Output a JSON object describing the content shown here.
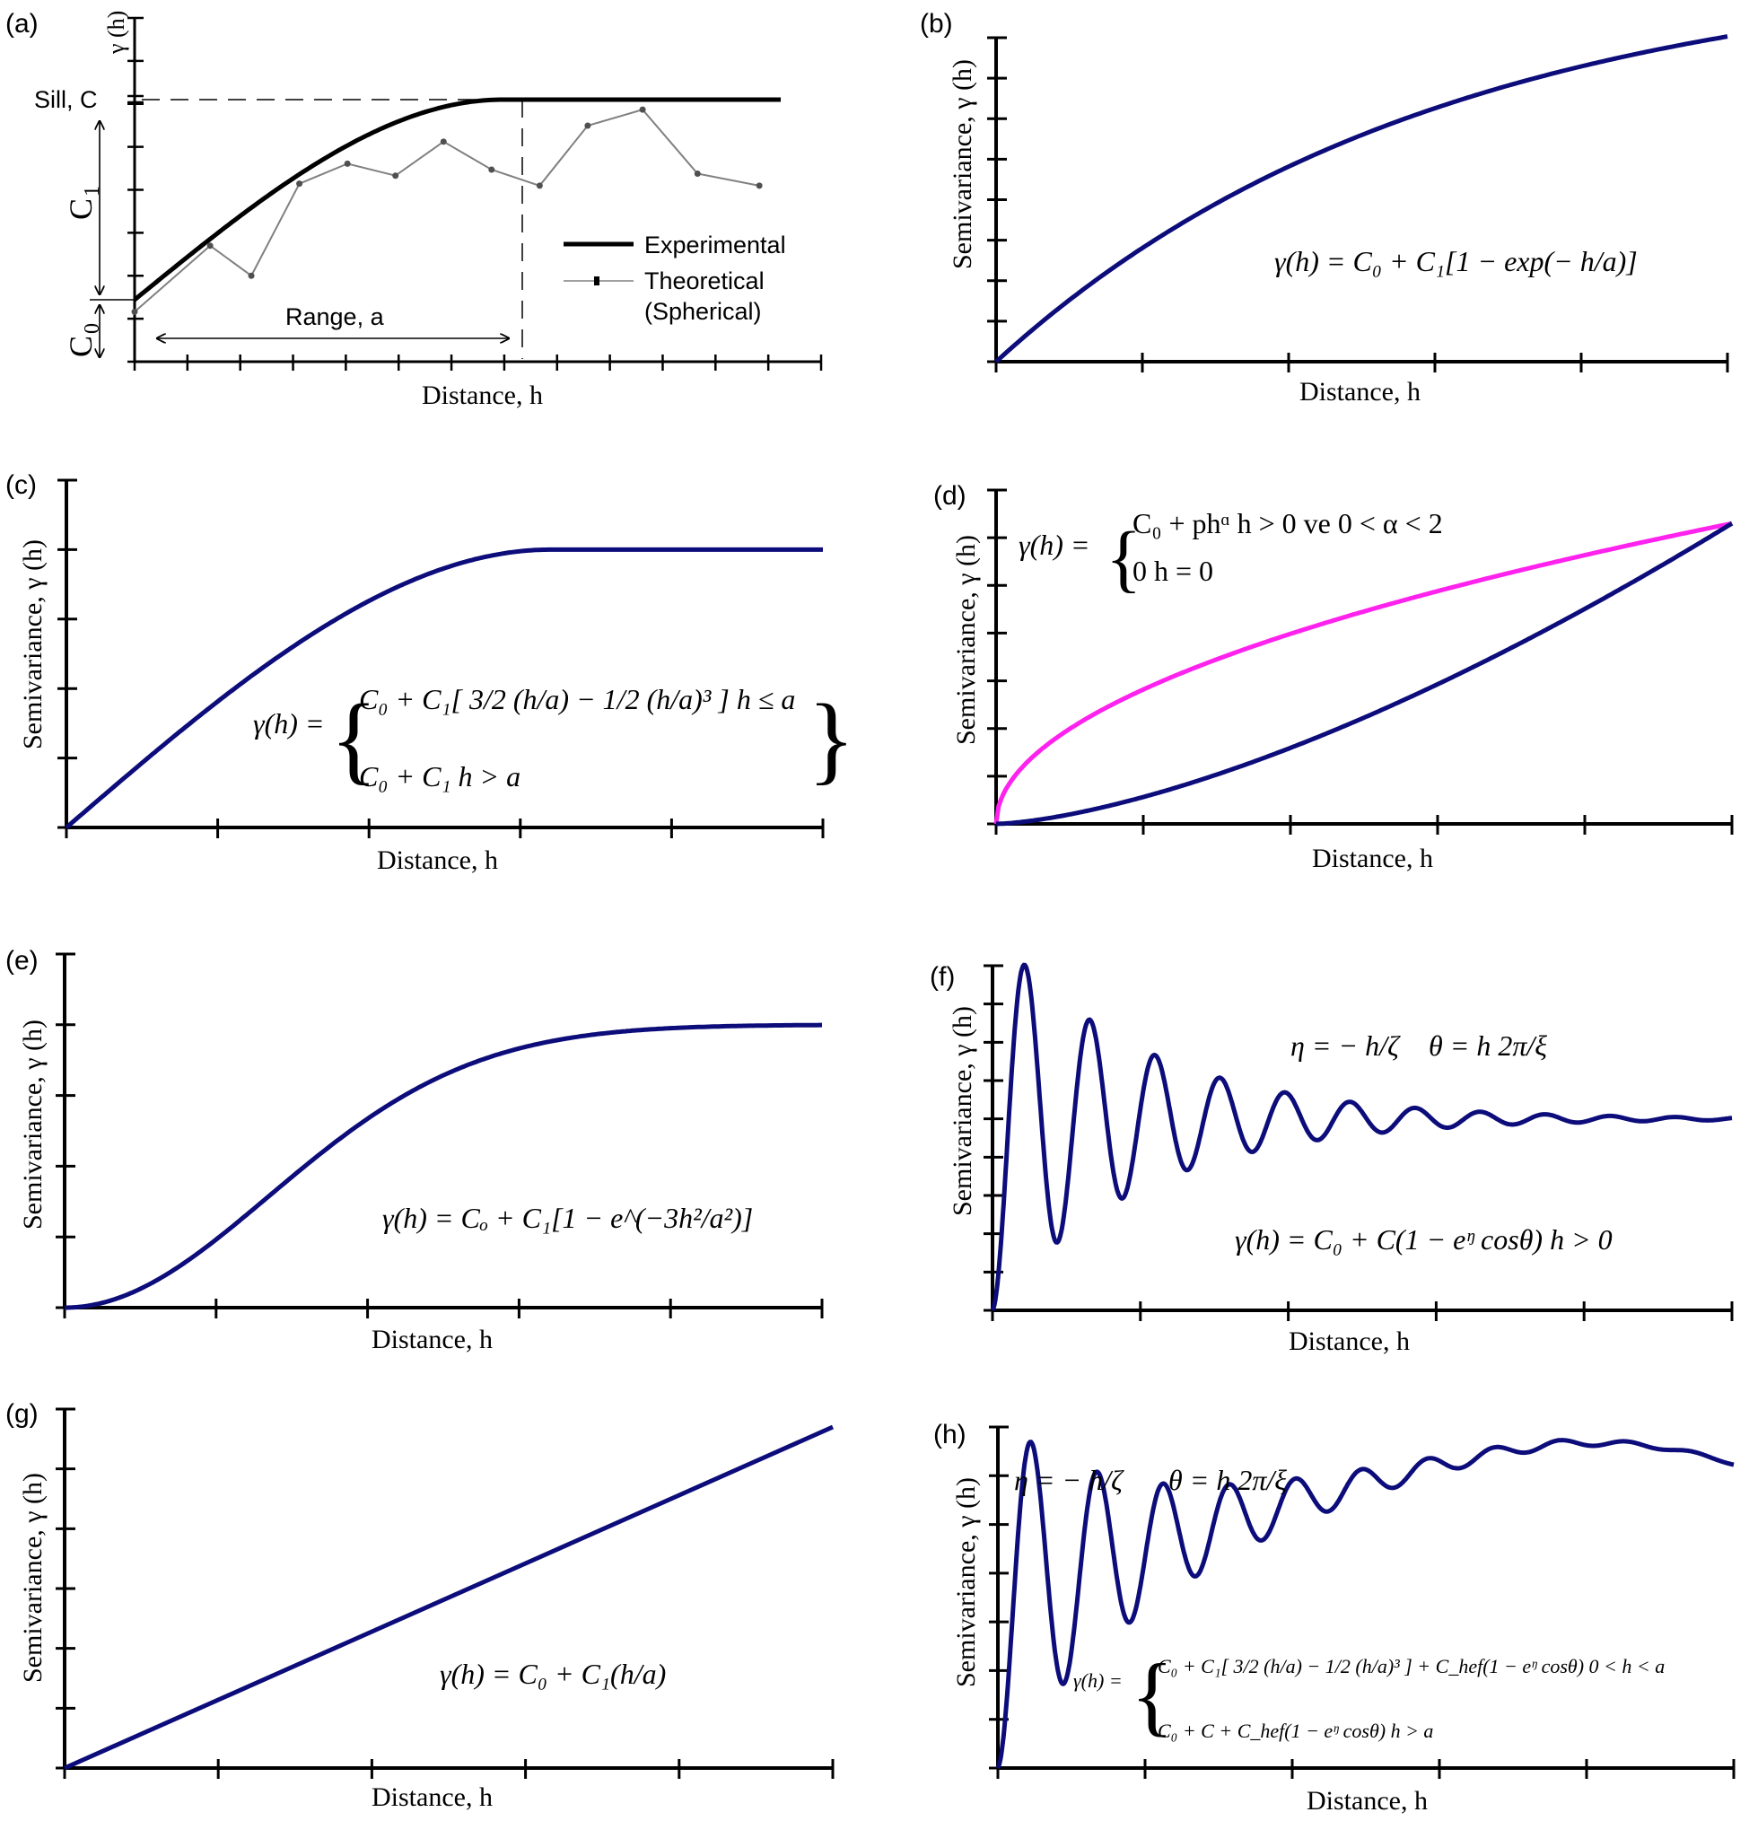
{
  "figure": {
    "colors": {
      "curve": "#0c0c7a",
      "power_alt": "#ff22ee",
      "axis": "#000000",
      "theoretical": "#808080"
    }
  },
  "chart_data": [
    {
      "id": "a",
      "type": "line",
      "panel_label": "(a)",
      "xlabel": "Distance, h",
      "ylabel": "γ (h)",
      "annotations": {
        "sill": "Sill, C",
        "c1": "C",
        "c1_sub": "1",
        "c0": "C",
        "c0_sub": "0",
        "range": "Range, a"
      },
      "legend": {
        "position": "right",
        "entries": [
          "Experimental",
          "Theoretical",
          "(Spherical)"
        ]
      },
      "x_ticks": 13,
      "y_ticks": 8,
      "nugget": 0.0,
      "sill": 1.0,
      "range_fraction": 0.565,
      "series": [
        {
          "name": "Experimental",
          "model": "spherical",
          "c0_ratio": 0.0,
          "x": [
            0,
            0.565,
            0.95
          ],
          "comment": "smooth spherical curve reaching sill at range"
        },
        {
          "name": "Theoretical (Spherical)",
          "x": [
            0,
            0.11,
            0.17,
            0.24,
            0.31,
            0.38,
            0.45,
            0.52,
            0.59,
            0.66,
            0.74,
            0.82,
            0.91
          ],
          "y": [
            -0.06,
            0.27,
            0.12,
            0.58,
            0.68,
            0.62,
            0.79,
            0.65,
            0.57,
            0.87,
            0.95,
            0.63,
            0.57
          ]
        }
      ]
    },
    {
      "id": "b",
      "type": "line",
      "panel_label": "(b)",
      "model": "exponential",
      "xlabel": "Distance, h",
      "ylabel": "Semivariance, γ (h)",
      "equation": "γ(h) = C₀ + C₁[1 − exp(− h/a)]",
      "x_ticks": 5,
      "y_ticks": 8,
      "xlim": [
        0,
        5
      ],
      "ylim": [
        0,
        8
      ],
      "params": {
        "c0": 0,
        "c1": 9.9,
        "a": 3.0
      }
    },
    {
      "id": "c",
      "type": "line",
      "panel_label": "(c)",
      "model": "spherical",
      "xlabel": "Distance, h",
      "ylabel": "Semivariance, γ (h)",
      "equation_lhs": "γ(h) =",
      "equation_cases": [
        "C₀ + C₁[ 3/2 (h/a) − 1/2 (h/a)³ ]   h ≤ a",
        "C₀ + C₁   h > a"
      ],
      "x_ticks": 5,
      "y_ticks": 5,
      "xlim": [
        0,
        5
      ],
      "ylim": [
        0,
        5
      ],
      "params": {
        "c0": 0,
        "c1": 4,
        "a": 3.2
      }
    },
    {
      "id": "d",
      "type": "line",
      "panel_label": "(d)",
      "model": "power",
      "xlabel": "Distance, h",
      "ylabel": "Semivariance, γ (h)",
      "equation_lhs": "γ(h) =",
      "equation_cases": [
        "C₀ + phᵅ   h > 0 ve 0 < α < 2",
        "0   h = 0"
      ],
      "x_ticks": 5,
      "y_ticks": 7,
      "xlim": [
        0,
        5
      ],
      "ylim": [
        0,
        7
      ],
      "series": [
        {
          "name": "alpha < 1",
          "color": "power_alt",
          "params": {
            "p": 6.3,
            "alpha": 0.5
          }
        },
        {
          "name": "alpha > 1",
          "color": "curve",
          "params": {
            "p": 6.3,
            "alpha": 1.5
          }
        }
      ]
    },
    {
      "id": "e",
      "type": "line",
      "panel_label": "(e)",
      "model": "gaussian",
      "xlabel": "Distance, h",
      "ylabel": "Semivariance, γ (h)",
      "equation": "γ(h) = Cₒ + C₁[1 − e^(−3h²/a²)]",
      "x_ticks": 5,
      "y_ticks": 5,
      "xlim": [
        0,
        5
      ],
      "ylim": [
        0,
        5
      ],
      "params": {
        "c0": 0,
        "c1": 4,
        "a": 3.3
      }
    },
    {
      "id": "f",
      "type": "line",
      "panel_label": "(f)",
      "model": "hole_effect",
      "xlabel": "Distance, h",
      "ylabel": "Semivariance, γ (h)",
      "equation_defs": [
        "η = − h/ζ",
        "θ = h 2π/ξ"
      ],
      "equation": "γ(h) = C₀ + C(1 − eᵑ cosθ)   h > 0",
      "x_ticks": 5,
      "y_ticks": 9,
      "xlim": [
        0,
        5
      ],
      "ylim": [
        0,
        9
      ],
      "params": {
        "c0": 0,
        "c": 5.0,
        "zeta": 1.0,
        "xi": 0.44
      }
    },
    {
      "id": "g",
      "type": "line",
      "panel_label": "(g)",
      "model": "linear",
      "xlabel": "Distance, h",
      "ylabel": "Semivariance, γ (h)",
      "equation": "γ(h) = C₀ + C₁(h/a)",
      "x_ticks": 5,
      "y_ticks": 6,
      "xlim": [
        0,
        5
      ],
      "ylim": [
        0,
        6
      ],
      "params": {
        "c0": 0,
        "slope": 1.14
      }
    },
    {
      "id": "h",
      "type": "line",
      "panel_label": "(h)",
      "model": "spherical_plus_hole_effect",
      "xlabel": "Distance, h",
      "ylabel": "Semivariance, γ (h)",
      "equation_defs": [
        "η = − h/ζ",
        "θ = h 2π/ξ"
      ],
      "equation_lhs": "γ(h) =",
      "equation_cases": [
        "C₀ + C₁[ 3/2 (h/a) − 1/2 (h/a)³ ] + C_hef(1 − eᵑ cosθ)   0 < h < a",
        "C₀ + C + C_hef(1 − eᵑ cosθ)   h > a"
      ],
      "x_ticks": 5,
      "y_ticks": 7,
      "xlim": [
        0,
        5
      ],
      "ylim": [
        0,
        7
      ],
      "params": {
        "c0": 0,
        "c1": 3.6,
        "a": 5.6,
        "c_hef": 3.6,
        "zeta": 1.0,
        "xi": 0.45
      }
    }
  ]
}
